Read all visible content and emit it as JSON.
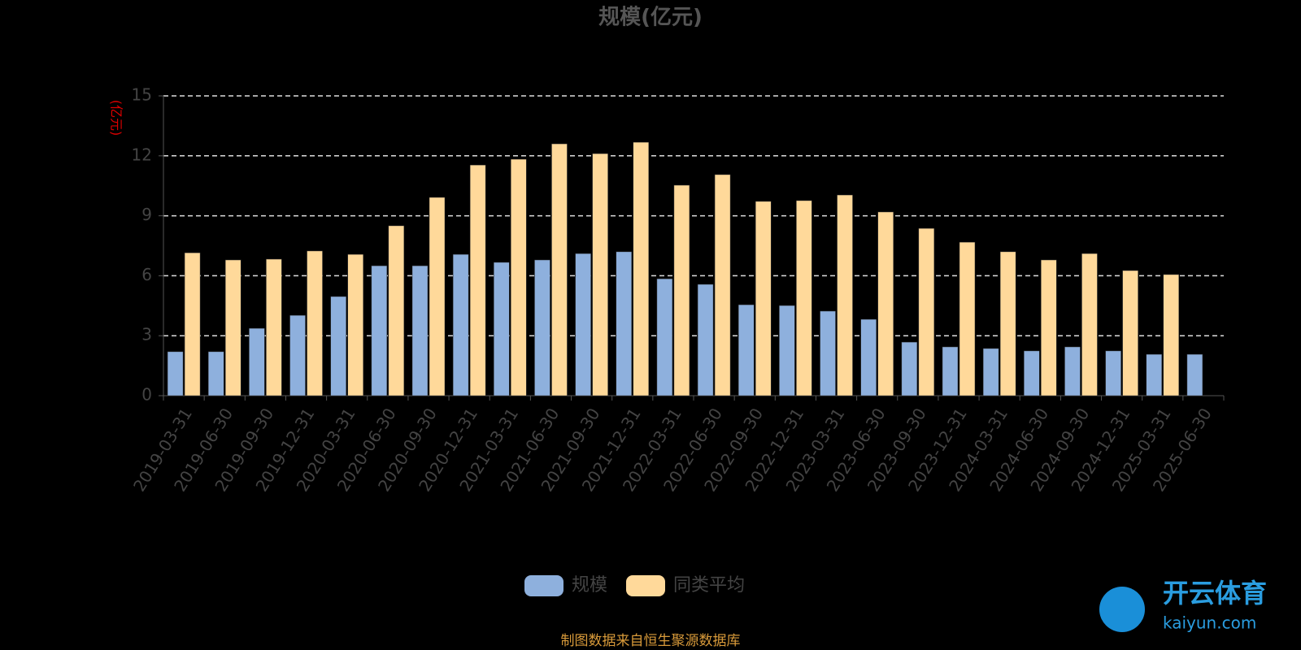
{
  "chart_data": {
    "type": "bar",
    "title": "规模(亿元)",
    "y_label": "(亿元)",
    "categories": [
      "2019-03-31",
      "2019-06-30",
      "2019-09-30",
      "2019-12-31",
      "2020-03-31",
      "2020-06-30",
      "2020-09-30",
      "2020-12-31",
      "2021-03-31",
      "2021-06-30",
      "2021-09-30",
      "2021-12-31",
      "2022-03-31",
      "2022-06-30",
      "2022-09-30",
      "2022-12-31",
      "2023-03-31",
      "2023-06-30",
      "2023-09-30",
      "2023-12-31",
      "2024-03-31",
      "2024-06-30",
      "2024-09-30",
      "2024-12-31",
      "2025-03-31",
      "2025-06-30"
    ],
    "series": [
      {
        "name": "规模",
        "color": "#8eb0dd",
        "values": [
          2.2,
          2.2,
          3.37,
          4.02,
          4.96,
          6.5,
          6.5,
          7.07,
          6.67,
          6.79,
          7.11,
          7.2,
          5.85,
          5.57,
          4.55,
          4.51,
          4.23,
          3.82,
          2.68,
          2.44,
          2.36,
          2.24,
          2.44,
          2.24,
          2.07,
          2.07
        ]
      },
      {
        "name": "同类平均",
        "color": "#ffd99a",
        "values": [
          7.15,
          6.79,
          6.83,
          7.24,
          7.07,
          8.5,
          9.92,
          11.54,
          11.83,
          12.6,
          12.11,
          12.68,
          10.53,
          11.06,
          9.72,
          9.76,
          10.04,
          9.19,
          8.37,
          7.68,
          7.2,
          6.79,
          7.11,
          6.26,
          6.06,
          null
        ]
      }
    ],
    "ylim": [
      0,
      15
    ],
    "yticks": [
      0,
      3,
      6,
      9,
      12,
      15
    ],
    "grid": true,
    "source": "制图数据来自恒生聚源数据库"
  },
  "watermark": {
    "brand": "开云体育",
    "url": "kaiyun.com"
  }
}
